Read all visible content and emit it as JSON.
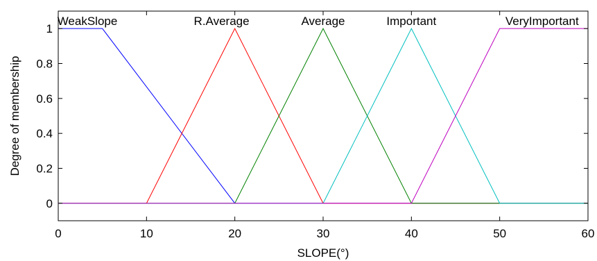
{
  "chart_data": {
    "type": "line",
    "title": "",
    "xlabel": "SLOPE(°)",
    "ylabel": "Degree of membership",
    "xlim": [
      0,
      60
    ],
    "ylim": [
      -0.1,
      1.1
    ],
    "xticks": [
      0,
      10,
      20,
      30,
      40,
      50,
      60
    ],
    "yticks": [
      0,
      0.2,
      0.4,
      0.6,
      0.8,
      1
    ],
    "xtick_labels": [
      "0",
      "10",
      "20",
      "30",
      "40",
      "50",
      "60"
    ],
    "ytick_labels": [
      "0",
      "0.2",
      "0.4",
      "0.6",
      "0.8",
      "1"
    ],
    "grid": false,
    "series": [
      {
        "name": "WeakSlope",
        "color": "#0000ff",
        "x": [
          0,
          5,
          20,
          60
        ],
        "y": [
          1,
          1,
          0,
          0
        ]
      },
      {
        "name": "R.Average",
        "color": "#ff0000",
        "x": [
          0,
          10,
          20,
          30,
          60
        ],
        "y": [
          0,
          0,
          1,
          0,
          0
        ]
      },
      {
        "name": "Average",
        "color": "#008000",
        "x": [
          0,
          20,
          30,
          40,
          60
        ],
        "y": [
          0,
          0,
          1,
          0,
          0
        ]
      },
      {
        "name": "Important",
        "color": "#00bfbf",
        "x": [
          0,
          30,
          40,
          50,
          60
        ],
        "y": [
          0,
          0,
          1,
          0,
          0
        ]
      },
      {
        "name": "VeryImportant",
        "color": "#bf00bf",
        "x": [
          0,
          40,
          50,
          60
        ],
        "y": [
          0,
          0,
          1,
          1
        ]
      }
    ],
    "series_labels": [
      {
        "text": "WeakSlope",
        "x": 3.3
      },
      {
        "text": "R.Average",
        "x": 18.5
      },
      {
        "text": "Average",
        "x": 30
      },
      {
        "text": "Important",
        "x": 40
      },
      {
        "text": "VeryImportant",
        "x": 54.8
      }
    ]
  }
}
